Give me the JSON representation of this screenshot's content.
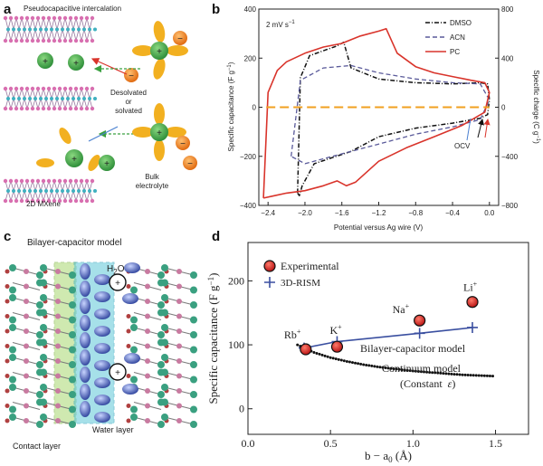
{
  "panels": {
    "a": {
      "label": "a",
      "title": "Pseudocapacitive intercalation",
      "desolvated": "Desolvated",
      "or": "or",
      "solvated": "solvated",
      "bulk": "Bulk",
      "electrolyte": "electrolyte",
      "substrate": "2D MXene",
      "plus": "+",
      "minus": "−"
    },
    "b": {
      "label": "b"
    },
    "c": {
      "label": "c",
      "title": "Bilayer-capacitor model",
      "water_formula": "H",
      "water_sub": "2",
      "water_o": "O",
      "water_layer": "Water layer",
      "contact_layer": "Contact layer",
      "plus": "+"
    },
    "d": {
      "label": "d"
    }
  },
  "colors": {
    "dmso": "#111111",
    "acn": "#5a5a9a",
    "pc": "#d9342b",
    "zero_line": "#f0a020",
    "experimental": "#d62020",
    "rism": "#3a4fa0",
    "mxene_atom": "#d86fb0",
    "mxene_mid": "#40b0c0",
    "cation": "#3aa040",
    "anion": "#f08020",
    "solvent": "#f2b020",
    "contact_layer": "#a8d870",
    "water_layer": "#5ec8d8",
    "water_orbital": "#2a3f9a"
  },
  "chart_data": [
    {
      "type": "line",
      "panel": "b",
      "annotation_rate_prefix": "2 mV s",
      "annotation_rate_sup": "−1",
      "annotation_ocv": "OCV",
      "xlabel": "Potential versus Ag wire (V)",
      "ylabel": "Specific capacitance (F g",
      "ylabel_sup": "−1",
      "ylabel_close": ")",
      "y2label": "Specific charge (C g",
      "y2label_sup": "−1",
      "y2label_close": ")",
      "xlim": [
        -2.5,
        0.1
      ],
      "ylim": [
        -400,
        400
      ],
      "y2lim": [
        -800,
        800
      ],
      "xticks": [
        "−2.4",
        "−2.0",
        "−1.6",
        "−1.2",
        "−0.8",
        "−0.4",
        "0.0"
      ],
      "yticks": [
        "−400",
        "−200",
        "0",
        "200",
        "400"
      ],
      "y2ticks": [
        "−800",
        "−400",
        "0",
        "400",
        "800"
      ],
      "legend_position": "top-right",
      "series": [
        {
          "name": "DMSO",
          "style": "dashdot",
          "x": [
            -2.08,
            -2.05,
            -1.95,
            -1.8,
            -1.65,
            -1.58,
            -1.5,
            -1.2,
            -0.8,
            -0.4,
            -0.1,
            -0.02,
            0.0,
            -0.02,
            -0.1,
            -0.4,
            -0.8,
            -1.2,
            -1.5,
            -1.7,
            -1.9,
            -2.03,
            -2.06,
            -2.08
          ],
          "y": [
            -350,
            120,
            210,
            230,
            250,
            265,
            160,
            115,
            100,
            95,
            100,
            95,
            30,
            -30,
            -45,
            -65,
            -85,
            -120,
            -180,
            -205,
            -230,
            -320,
            -360,
            -350
          ]
        },
        {
          "name": "ACN",
          "style": "dashed",
          "x": [
            -2.15,
            -2.05,
            -1.8,
            -1.5,
            -1.2,
            -0.8,
            -0.4,
            -0.1,
            0.0,
            -0.1,
            -0.4,
            -0.8,
            -1.2,
            -1.6,
            -2.0,
            -2.15
          ],
          "y": [
            -200,
            110,
            160,
            170,
            140,
            115,
            100,
            95,
            30,
            -50,
            -80,
            -110,
            -150,
            -190,
            -230,
            -200
          ]
        },
        {
          "name": "PC",
          "style": "solid",
          "x": [
            -2.45,
            -2.4,
            -2.3,
            -2.2,
            -2.0,
            -1.8,
            -1.6,
            -1.4,
            -1.2,
            -1.12,
            -1.0,
            -0.8,
            -0.6,
            -0.4,
            -0.2,
            -0.05,
            0.0,
            -0.05,
            -0.3,
            -0.6,
            -0.9,
            -1.2,
            -1.45,
            -1.55,
            -1.65,
            -1.8,
            -2.0,
            -2.2,
            -2.35,
            -2.45
          ],
          "y": [
            -370,
            60,
            150,
            185,
            220,
            245,
            260,
            290,
            310,
            320,
            220,
            165,
            140,
            125,
            110,
            100,
            60,
            -20,
            -75,
            -120,
            -165,
            -220,
            -305,
            -320,
            -300,
            -320,
            -340,
            -350,
            -362,
            -370
          ]
        },
        {
          "name": "zero",
          "style": "dashed",
          "x": [
            -2.42,
            0.0
          ],
          "y": [
            0,
            0
          ]
        }
      ]
    },
    {
      "type": "scatter",
      "panel": "d",
      "xlabel_main": "b − a",
      "xlabel_sub": "0",
      "xlabel_unit": " (Å)",
      "ylabel": "Specific capacitance (F g",
      "ylabel_sup": "−1",
      "ylabel_close": ")",
      "xlim": [
        0,
        1.7
      ],
      "ylim": [
        -40,
        260
      ],
      "xticks": [
        "0.0",
        "0.5",
        "1.0",
        "1.5"
      ],
      "yticks": [
        "0",
        "100",
        "200"
      ],
      "legend_position": "top-left",
      "series": [
        {
          "name": "Experimental",
          "style": "marker-circle",
          "x": [
            0.35,
            0.54,
            1.04,
            1.36
          ],
          "y": [
            93,
            97,
            138,
            167
          ]
        },
        {
          "name": "3D-RISM",
          "style": "line-plus",
          "x": [
            0.34,
            0.54,
            1.04,
            1.36
          ],
          "y": [
            95,
            105,
            118,
            127
          ]
        },
        {
          "name": "continuum",
          "style": "dotted",
          "x": [
            0.3,
            0.4,
            0.5,
            0.6,
            0.7,
            0.8,
            0.9,
            1.0,
            1.1,
            1.2,
            1.3,
            1.4,
            1.5
          ],
          "y": [
            100,
            88,
            80,
            74,
            69,
            65,
            62,
            59,
            57,
            55,
            53,
            52,
            51
          ]
        }
      ],
      "point_labels": [
        {
          "ion": "Rb",
          "charge": "+"
        },
        {
          "ion": "K",
          "charge": "+"
        },
        {
          "ion": "Na",
          "charge": "+"
        },
        {
          "ion": "Li",
          "charge": "+"
        }
      ],
      "annotations": {
        "bilayer": "Bilayer-capacitor model",
        "continuum_1": "Continuum model",
        "continuum_2_prefix": "(Constant",
        "continuum_2_sym": "ε",
        "continuum_2_suffix": ")"
      }
    }
  ]
}
